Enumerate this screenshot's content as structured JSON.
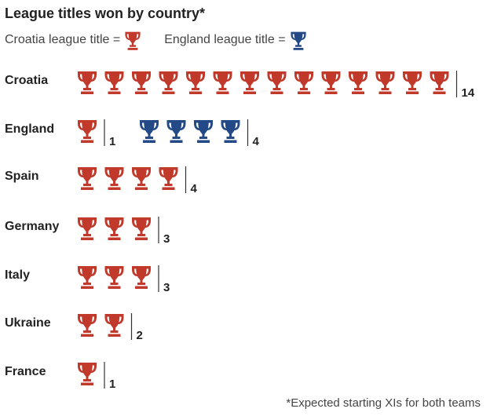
{
  "chart_data": {
    "type": "pictogram",
    "title": "League titles won by country*",
    "legend": [
      {
        "label": "Croatia league title =",
        "color": "#c0392b"
      },
      {
        "label": "England league title =",
        "color": "#234a86"
      }
    ],
    "categories": [
      "Croatia",
      "England",
      "Spain",
      "Germany",
      "Italy",
      "Ukraine",
      "France"
    ],
    "series": [
      {
        "name": "Croatia league title",
        "values": [
          14,
          1,
          4,
          3,
          3,
          2,
          1
        ]
      },
      {
        "name": "England league title",
        "values": [
          0,
          4,
          0,
          0,
          0,
          0,
          0
        ]
      }
    ],
    "colors": {
      "croatia": "#c0392b",
      "england": "#234a86"
    },
    "footnote": "*Expected starting XIs for both teams"
  }
}
